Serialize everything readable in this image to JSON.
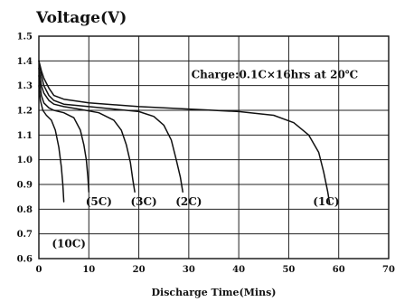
{
  "chart_data": {
    "type": "line",
    "title": "Voltage(V)",
    "xlabel": "Discharge Time(Mins)",
    "ylabel": "",
    "xlim": [
      0,
      70
    ],
    "ylim": [
      0.6,
      1.5
    ],
    "xticks": [
      "0",
      "10",
      "20",
      "30",
      "40",
      "50",
      "60",
      "70"
    ],
    "yticks": [
      "0.6",
      "0.7",
      "0.8",
      "0.9",
      "1.0",
      "1.1",
      "1.2",
      "1.3",
      "1.4",
      "1.5"
    ],
    "grid": true,
    "annotation": "Charge:0.1C×16hrs at 20℃",
    "series": [
      {
        "name": "(1C)",
        "points": [
          [
            0,
            1.4
          ],
          [
            0.5,
            1.36
          ],
          [
            1,
            1.33
          ],
          [
            2,
            1.29
          ],
          [
            3,
            1.26
          ],
          [
            5,
            1.245
          ],
          [
            10,
            1.23
          ],
          [
            20,
            1.215
          ],
          [
            30,
            1.205
          ],
          [
            40,
            1.195
          ],
          [
            47,
            1.18
          ],
          [
            51,
            1.15
          ],
          [
            54,
            1.1
          ],
          [
            56,
            1.03
          ],
          [
            57,
            0.95
          ],
          [
            57.8,
            0.87
          ],
          [
            58.2,
            0.82
          ]
        ]
      },
      {
        "name": "(2C)",
        "points": [
          [
            0,
            1.4
          ],
          [
            0.5,
            1.34
          ],
          [
            1,
            1.3
          ],
          [
            2,
            1.26
          ],
          [
            3,
            1.24
          ],
          [
            5,
            1.225
          ],
          [
            10,
            1.215
          ],
          [
            15,
            1.205
          ],
          [
            20,
            1.195
          ],
          [
            23,
            1.175
          ],
          [
            25,
            1.14
          ],
          [
            26.5,
            1.08
          ],
          [
            27.5,
            1.0
          ],
          [
            28.3,
            0.93
          ],
          [
            28.8,
            0.87
          ]
        ]
      },
      {
        "name": "(3C)",
        "points": [
          [
            0,
            1.37
          ],
          [
            0.5,
            1.3
          ],
          [
            1,
            1.27
          ],
          [
            2,
            1.24
          ],
          [
            3,
            1.225
          ],
          [
            5,
            1.215
          ],
          [
            8,
            1.205
          ],
          [
            12,
            1.19
          ],
          [
            15,
            1.16
          ],
          [
            16.5,
            1.12
          ],
          [
            17.5,
            1.06
          ],
          [
            18.3,
            0.99
          ],
          [
            18.8,
            0.92
          ],
          [
            19.2,
            0.87
          ]
        ]
      },
      {
        "name": "(5C)",
        "points": [
          [
            0,
            1.34
          ],
          [
            0.5,
            1.26
          ],
          [
            1,
            1.23
          ],
          [
            2,
            1.21
          ],
          [
            3,
            1.2
          ],
          [
            5,
            1.19
          ],
          [
            7,
            1.17
          ],
          [
            8.3,
            1.12
          ],
          [
            9,
            1.06
          ],
          [
            9.5,
            1.0
          ],
          [
            9.8,
            0.93
          ],
          [
            10,
            0.87
          ]
        ]
      },
      {
        "name": "(10C)",
        "points": [
          [
            0,
            1.3
          ],
          [
            0.3,
            1.24
          ],
          [
            0.8,
            1.2
          ],
          [
            1.5,
            1.18
          ],
          [
            2.5,
            1.16
          ],
          [
            3.3,
            1.12
          ],
          [
            4,
            1.05
          ],
          [
            4.5,
            0.97
          ],
          [
            4.8,
            0.9
          ],
          [
            5,
            0.83
          ]
        ]
      }
    ],
    "series_labels_position": [
      {
        "name": "(1C)",
        "x": 57.5,
        "y": 0.83
      },
      {
        "name": "(2C)",
        "x": 30,
        "y": 0.83
      },
      {
        "name": "(3C)",
        "x": 21,
        "y": 0.83
      },
      {
        "name": "(5C)",
        "x": 12,
        "y": 0.83
      },
      {
        "name": "(10C)",
        "x": 6,
        "y": 0.66
      }
    ]
  }
}
